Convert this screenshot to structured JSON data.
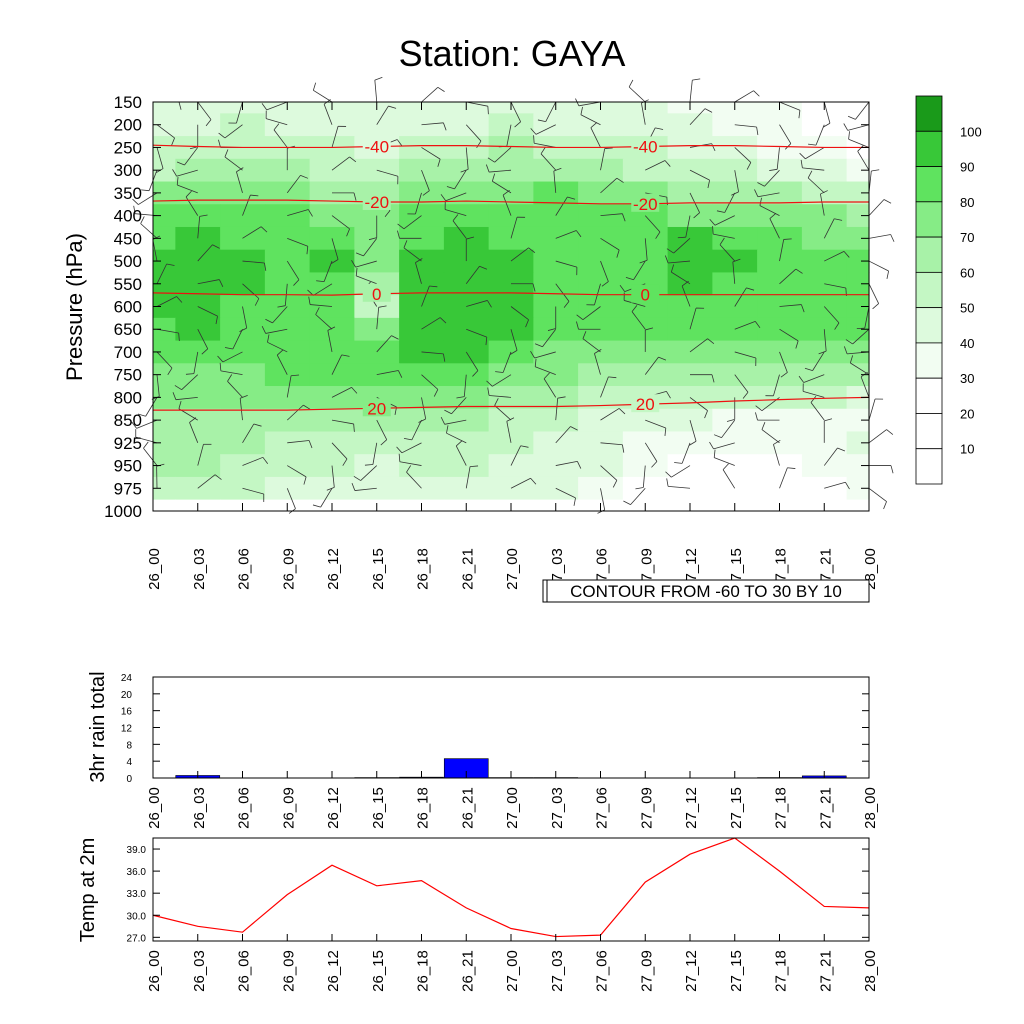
{
  "title": "Station: GAYA",
  "time_labels": [
    "26_00",
    "26_03",
    "26_06",
    "26_09",
    "26_12",
    "26_15",
    "26_18",
    "26_21",
    "27_00",
    "27_03",
    "27_06",
    "27_09",
    "27_12",
    "27_15",
    "27_18",
    "27_21",
    "28_00"
  ],
  "chart_data": [
    {
      "type": "heatmap",
      "title": "Station: GAYA",
      "ylabel": "Pressure (hPa)",
      "y_reversed": true,
      "pressure_levels": [
        150,
        200,
        250,
        300,
        350,
        400,
        450,
        500,
        550,
        600,
        650,
        700,
        750,
        800,
        850,
        925,
        950,
        975,
        1000
      ],
      "x": [
        "26_00",
        "26_03",
        "26_06",
        "26_09",
        "26_12",
        "26_15",
        "26_18",
        "26_21",
        "27_00",
        "27_03",
        "27_06",
        "27_09",
        "27_12",
        "27_15",
        "27_18",
        "27_21",
        "28_00"
      ],
      "fill_variable_levels": [
        10,
        20,
        30,
        40,
        50,
        60,
        70,
        80,
        90,
        100
      ],
      "fill_colors": [
        "#ffffff",
        "#ffffff",
        "#f2fdf2",
        "#ddfadd",
        "#c4f7c4",
        "#a8f2a8",
        "#86ec86",
        "#5fe35f",
        "#38c838",
        "#1a9a1a"
      ],
      "humidity_grid": [
        [
          40,
          40,
          45,
          45,
          40,
          40,
          45,
          40,
          45,
          40,
          40,
          40,
          35,
          35,
          30,
          25,
          25
        ],
        [
          45,
          45,
          50,
          45,
          45,
          40,
          45,
          45,
          50,
          45,
          45,
          45,
          40,
          35,
          30,
          25,
          20
        ],
        [
          50,
          50,
          55,
          55,
          50,
          45,
          50,
          55,
          60,
          55,
          50,
          50,
          45,
          40,
          35,
          30,
          25
        ],
        [
          55,
          60,
          60,
          60,
          55,
          55,
          60,
          60,
          65,
          65,
          60,
          55,
          50,
          50,
          45,
          40,
          35
        ],
        [
          70,
          70,
          70,
          70,
          65,
          65,
          70,
          70,
          75,
          80,
          75,
          70,
          65,
          65,
          60,
          55,
          50
        ],
        [
          80,
          80,
          80,
          80,
          75,
          70,
          80,
          80,
          80,
          85,
          85,
          80,
          75,
          75,
          70,
          70,
          65
        ],
        [
          85,
          90,
          85,
          85,
          85,
          75,
          85,
          90,
          85,
          85,
          85,
          85,
          90,
          85,
          80,
          75,
          70
        ],
        [
          90,
          95,
          90,
          85,
          90,
          70,
          90,
          95,
          90,
          85,
          85,
          85,
          95,
          90,
          85,
          80,
          80
        ],
        [
          90,
          95,
          90,
          85,
          85,
          60,
          90,
          95,
          90,
          85,
          85,
          85,
          90,
          85,
          85,
          85,
          80
        ],
        [
          90,
          90,
          85,
          85,
          80,
          55,
          90,
          95,
          90,
          85,
          80,
          85,
          85,
          80,
          80,
          85,
          85
        ],
        [
          85,
          90,
          85,
          80,
          85,
          70,
          90,
          95,
          90,
          80,
          80,
          80,
          80,
          80,
          80,
          80,
          80
        ],
        [
          80,
          85,
          80,
          80,
          85,
          80,
          90,
          90,
          85,
          75,
          70,
          70,
          75,
          75,
          75,
          75,
          75
        ],
        [
          75,
          75,
          75,
          80,
          85,
          80,
          85,
          80,
          75,
          70,
          65,
          60,
          65,
          65,
          65,
          60,
          60
        ],
        [
          70,
          70,
          70,
          70,
          75,
          70,
          75,
          70,
          65,
          60,
          55,
          55,
          55,
          50,
          50,
          50,
          45
        ],
        [
          65,
          65,
          65,
          65,
          65,
          60,
          60,
          60,
          55,
          50,
          45,
          40,
          40,
          35,
          35,
          35,
          35
        ],
        [
          60,
          60,
          60,
          55,
          55,
          50,
          50,
          55,
          50,
          45,
          40,
          35,
          30,
          30,
          30,
          35,
          40
        ],
        [
          60,
          60,
          55,
          50,
          50,
          45,
          50,
          50,
          45,
          40,
          40,
          30,
          25,
          25,
          25,
          30,
          35
        ],
        [
          55,
          55,
          50,
          45,
          45,
          45,
          45,
          45,
          45,
          40,
          35,
          25,
          20,
          20,
          20,
          25,
          30
        ],
        [
          0,
          0,
          0,
          0,
          0,
          0,
          0,
          0,
          0,
          0,
          0,
          0,
          0,
          0,
          0,
          0,
          0
        ]
      ],
      "temperature_lines": [
        {
          "label": "-40",
          "pressure": [
            245,
            248,
            250,
            250,
            250,
            248,
            246,
            246,
            248,
            250,
            250,
            248,
            246,
            246,
            248,
            250,
            250
          ]
        },
        {
          "label": "-20",
          "pressure": [
            368,
            366,
            366,
            366,
            368,
            370,
            370,
            368,
            370,
            372,
            374,
            374,
            372,
            372,
            372,
            370,
            370
          ]
        },
        {
          "label": "0",
          "pressure": [
            570,
            572,
            574,
            574,
            575,
            572,
            570,
            570,
            570,
            572,
            574,
            574,
            574,
            574,
            574,
            574,
            574
          ]
        },
        {
          "label": "20",
          "pressure": [
            828,
            828,
            828,
            828,
            826,
            824,
            822,
            820,
            820,
            820,
            818,
            815,
            812,
            808,
            805,
            802,
            800
          ]
        }
      ],
      "annotation": "CONTOUR FROM -60 TO 30 BY 10",
      "colorbar_labels": [
        "10",
        "20",
        "30",
        "40",
        "50",
        "60",
        "70",
        "80",
        "90",
        "100"
      ]
    },
    {
      "type": "bar",
      "ylabel": "3hr rain total",
      "categories": [
        "26_00",
        "26_03",
        "26_06",
        "26_09",
        "26_12",
        "26_15",
        "26_18",
        "26_21",
        "27_00",
        "27_03",
        "27_06",
        "27_09",
        "27_12",
        "27_15",
        "27_18",
        "27_21",
        "28_00"
      ],
      "values": [
        0,
        0.6,
        0,
        0,
        0,
        0.1,
        0.2,
        4.6,
        0.1,
        0.1,
        0,
        0,
        0,
        0,
        0.1,
        0.5,
        0
      ],
      "ylim": [
        0,
        24
      ],
      "yticks": [
        "0",
        "4",
        "8",
        "12",
        "16",
        "20",
        "24"
      ],
      "color": "#0000ff"
    },
    {
      "type": "line",
      "ylabel": "Temp at 2m",
      "x": [
        "26_00",
        "26_03",
        "26_06",
        "26_09",
        "26_12",
        "26_15",
        "26_18",
        "26_21",
        "27_00",
        "27_03",
        "27_06",
        "27_09",
        "27_12",
        "27_15",
        "27_18",
        "27_21",
        "28_00"
      ],
      "values": [
        30.0,
        28.5,
        27.7,
        32.8,
        36.8,
        34.0,
        34.7,
        31.0,
        28.2,
        27.1,
        27.3,
        34.5,
        38.3,
        40.5,
        36.0,
        31.2,
        31.0
      ],
      "ylim": [
        26.5,
        40.5
      ],
      "yticks": [
        "27.0",
        "30.0",
        "33.0",
        "36.0",
        "39.0"
      ],
      "color": "#ff0000"
    }
  ]
}
